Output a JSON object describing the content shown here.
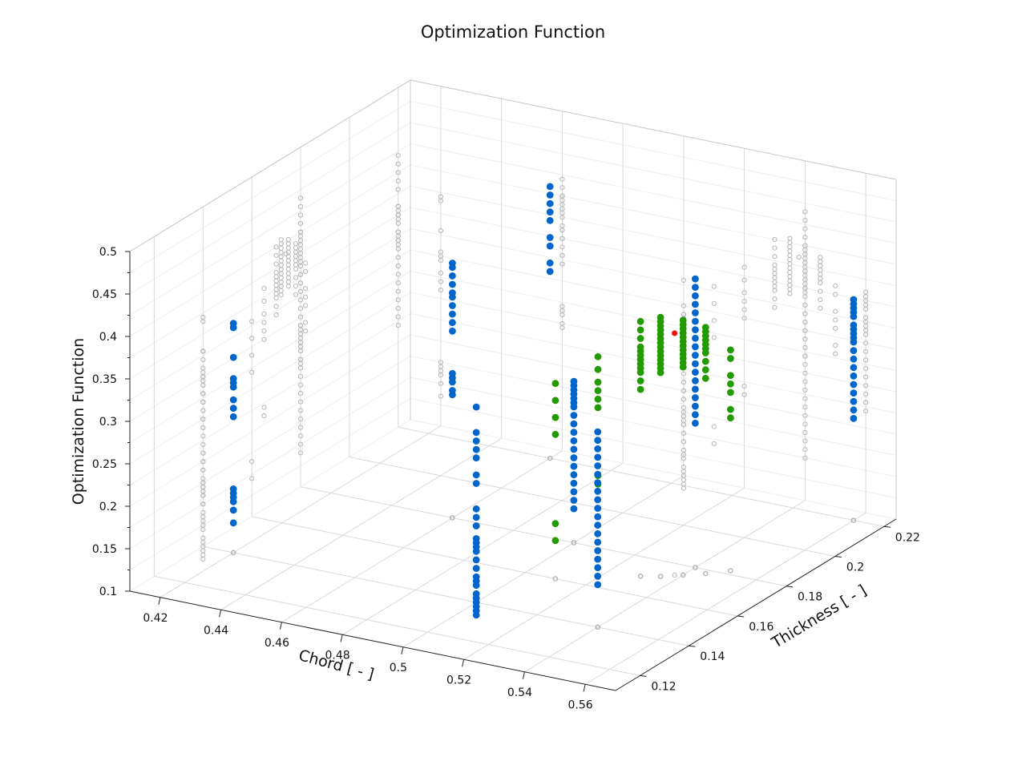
{
  "chart_data": {
    "type": "scatter",
    "title": "Optimization Function",
    "xlabel": "Chord [ - ]",
    "ylabel": "Thickness [ - ]",
    "zlabel": "Optimization Function",
    "xlim": [
      0.41,
      0.57
    ],
    "ylim": [
      0.11,
      0.225
    ],
    "zlim": [
      0.1,
      0.5
    ],
    "xticks": [
      "0.42",
      "0.44",
      "0.46",
      "0.48",
      "0.5",
      "0.52",
      "0.54",
      "0.56"
    ],
    "yticks": [
      "0.12",
      "0.14",
      "0.16",
      "0.18",
      "0.2",
      "0.22"
    ],
    "zticks": [
      "0.1",
      "0.15",
      "0.2",
      "0.25",
      "0.3",
      "0.35",
      "0.4",
      "0.45",
      "0.5"
    ],
    "colors": {
      "projection": "#b5b5b5",
      "explored": "#0066cc",
      "refined": "#229a00",
      "optimum": "#ee1111"
    },
    "grid": true,
    "series": [
      {
        "color": "#0066cc",
        "x": [
          0.42,
          0.42,
          0.42,
          0.42,
          0.42,
          0.42,
          0.42,
          0.42,
          0.42,
          0.42,
          0.42,
          0.42,
          0.42,
          0.42,
          0.42,
          0.46,
          0.46,
          0.46,
          0.46,
          0.46,
          0.46,
          0.46,
          0.46,
          0.46,
          0.46,
          0.46,
          0.46,
          0.46,
          0.46,
          0.46,
          0.46,
          0.46,
          0.46,
          0.46,
          0.46,
          0.46,
          0.46,
          0.46,
          0.46,
          0.5,
          0.5,
          0.5,
          0.5,
          0.5,
          0.5,
          0.5,
          0.5,
          0.5,
          0.5,
          0.5,
          0.5,
          0.5,
          0.5,
          0.5,
          0.5,
          0.5,
          0.5,
          0.5,
          0.5,
          0.5,
          0.5,
          0.5,
          0.5,
          0.5,
          0.5,
          0.5,
          0.5,
          0.5,
          0.5,
          0.5,
          0.5,
          0.5,
          0.5,
          0.5,
          0.5,
          0.5,
          0.5,
          0.5,
          0.5,
          0.5,
          0.5,
          0.5,
          0.5,
          0.54,
          0.54,
          0.54,
          0.54,
          0.54,
          0.54,
          0.54,
          0.54,
          0.54,
          0.54,
          0.54,
          0.54,
          0.54,
          0.54,
          0.54,
          0.54,
          0.54,
          0.54,
          0.54,
          0.54,
          0.54,
          0.54,
          0.54,
          0.54,
          0.54,
          0.54,
          0.54,
          0.54,
          0.54,
          0.54,
          0.54,
          0.54,
          0.54,
          0.54,
          0.54,
          0.54,
          0.54,
          0.56,
          0.56,
          0.56,
          0.56,
          0.56,
          0.56,
          0.56,
          0.56,
          0.56,
          0.56,
          0.56,
          0.56,
          0.56,
          0.56,
          0.56,
          0.56,
          0.56,
          0.56,
          0.56
        ],
        "y": [
          0.14,
          0.14,
          0.14,
          0.14,
          0.14,
          0.14,
          0.14,
          0.14,
          0.14,
          0.14,
          0.14,
          0.14,
          0.14,
          0.14,
          0.14,
          0.18,
          0.18,
          0.18,
          0.18,
          0.18,
          0.18,
          0.18,
          0.18,
          0.18,
          0.18,
          0.18,
          0.18,
          0.18,
          0.18,
          0.18,
          0.22,
          0.22,
          0.22,
          0.22,
          0.22,
          0.22,
          0.22,
          0.22,
          0.22,
          0.14,
          0.14,
          0.14,
          0.14,
          0.14,
          0.14,
          0.14,
          0.14,
          0.14,
          0.14,
          0.14,
          0.14,
          0.14,
          0.14,
          0.14,
          0.14,
          0.14,
          0.14,
          0.14,
          0.14,
          0.14,
          0.14,
          0.14,
          0.14,
          0.14,
          0.18,
          0.18,
          0.18,
          0.18,
          0.18,
          0.18,
          0.18,
          0.18,
          0.18,
          0.18,
          0.18,
          0.18,
          0.18,
          0.18,
          0.18,
          0.18,
          0.18,
          0.18,
          0.18,
          0.14,
          0.14,
          0.14,
          0.14,
          0.14,
          0.14,
          0.14,
          0.14,
          0.14,
          0.14,
          0.14,
          0.14,
          0.14,
          0.14,
          0.14,
          0.14,
          0.14,
          0.14,
          0.14,
          0.18,
          0.18,
          0.18,
          0.18,
          0.18,
          0.18,
          0.18,
          0.18,
          0.18,
          0.18,
          0.18,
          0.18,
          0.18,
          0.18,
          0.18,
          0.18,
          0.18,
          0.18,
          0.22,
          0.22,
          0.22,
          0.22,
          0.22,
          0.22,
          0.22,
          0.22,
          0.22,
          0.22,
          0.22,
          0.22,
          0.22,
          0.22,
          0.22,
          0.22,
          0.22,
          0.22,
          0.22
        ],
        "z": [
          0.37,
          0.365,
          0.33,
          0.305,
          0.3,
          0.295,
          0.28,
          0.27,
          0.26,
          0.175,
          0.17,
          0.165,
          0.16,
          0.15,
          0.135,
          0.4,
          0.395,
          0.385,
          0.375,
          0.365,
          0.36,
          0.35,
          0.34,
          0.33,
          0.32,
          0.27,
          0.265,
          0.26,
          0.25,
          0.245,
          0.42,
          0.41,
          0.4,
          0.39,
          0.38,
          0.36,
          0.35,
          0.33,
          0.32,
          0.33,
          0.3,
          0.29,
          0.28,
          0.27,
          0.25,
          0.24,
          0.21,
          0.2,
          0.19,
          0.175,
          0.17,
          0.165,
          0.16,
          0.15,
          0.14,
          0.13,
          0.125,
          0.12,
          0.11,
          0.105,
          0.1,
          0.095,
          0.09,
          0.085,
          0.29,
          0.285,
          0.28,
          0.275,
          0.27,
          0.265,
          0.26,
          0.25,
          0.24,
          0.23,
          0.22,
          0.21,
          0.2,
          0.19,
          0.18,
          0.17,
          0.16,
          0.15,
          0.14,
          0.33,
          0.32,
          0.31,
          0.3,
          0.29,
          0.28,
          0.27,
          0.26,
          0.25,
          0.24,
          0.23,
          0.22,
          0.21,
          0.2,
          0.19,
          0.18,
          0.17,
          0.16,
          0.15,
          0.44,
          0.43,
          0.42,
          0.41,
          0.4,
          0.39,
          0.38,
          0.37,
          0.36,
          0.35,
          0.34,
          0.33,
          0.32,
          0.31,
          0.3,
          0.29,
          0.28,
          0.27,
          0.36,
          0.355,
          0.35,
          0.345,
          0.34,
          0.33,
          0.325,
          0.32,
          0.315,
          0.31,
          0.3,
          0.29,
          0.28,
          0.27,
          0.26,
          0.25,
          0.24,
          0.23,
          0.22
        ]
      },
      {
        "color": "#229a00",
        "x": [
          0.51,
          0.51,
          0.51,
          0.51,
          0.51,
          0.51,
          0.52,
          0.52,
          0.52,
          0.52,
          0.52,
          0.52,
          0.52,
          0.52,
          0.53,
          0.53,
          0.53,
          0.53,
          0.53,
          0.53,
          0.53,
          0.53,
          0.53,
          0.53,
          0.53,
          0.53,
          0.535,
          0.535,
          0.535,
          0.535,
          0.535,
          0.535,
          0.535,
          0.535,
          0.535,
          0.535,
          0.535,
          0.535,
          0.535,
          0.535,
          0.54,
          0.54,
          0.54,
          0.54,
          0.54,
          0.54,
          0.54,
          0.54,
          0.54,
          0.54,
          0.54,
          0.54,
          0.545,
          0.545,
          0.545,
          0.545,
          0.545,
          0.545,
          0.545,
          0.545,
          0.545,
          0.545,
          0.55,
          0.55,
          0.55,
          0.55,
          0.55,
          0.55,
          0.55
        ],
        "y": [
          0.16,
          0.16,
          0.16,
          0.16,
          0.16,
          0.16,
          0.165,
          0.165,
          0.165,
          0.165,
          0.165,
          0.165,
          0.165,
          0.165,
          0.17,
          0.17,
          0.17,
          0.17,
          0.17,
          0.17,
          0.17,
          0.17,
          0.17,
          0.17,
          0.17,
          0.17,
          0.172,
          0.172,
          0.172,
          0.172,
          0.172,
          0.172,
          0.172,
          0.172,
          0.172,
          0.172,
          0.172,
          0.172,
          0.172,
          0.172,
          0.175,
          0.175,
          0.175,
          0.175,
          0.175,
          0.175,
          0.175,
          0.175,
          0.175,
          0.175,
          0.175,
          0.175,
          0.178,
          0.178,
          0.178,
          0.178,
          0.178,
          0.178,
          0.178,
          0.178,
          0.178,
          0.178,
          0.182,
          0.182,
          0.182,
          0.182,
          0.182,
          0.182,
          0.182
        ],
        "z": [
          0.33,
          0.31,
          0.29,
          0.27,
          0.165,
          0.145,
          0.36,
          0.345,
          0.33,
          0.32,
          0.31,
          0.3,
          0.22,
          0.21,
          0.4,
          0.39,
          0.38,
          0.37,
          0.365,
          0.36,
          0.355,
          0.35,
          0.345,
          0.34,
          0.33,
          0.32,
          0.405,
          0.4,
          0.395,
          0.39,
          0.385,
          0.38,
          0.375,
          0.37,
          0.365,
          0.36,
          0.355,
          0.35,
          0.345,
          0.34,
          0.4,
          0.395,
          0.39,
          0.385,
          0.38,
          0.375,
          0.37,
          0.365,
          0.36,
          0.355,
          0.35,
          0.345,
          0.39,
          0.385,
          0.38,
          0.375,
          0.37,
          0.365,
          0.36,
          0.35,
          0.34,
          0.33,
          0.36,
          0.35,
          0.33,
          0.32,
          0.31,
          0.29,
          0.28
        ]
      },
      {
        "color": "#ee1111",
        "x": [
          0.538
        ],
        "y": [
          0.174
        ],
        "z": [
          0.385
        ]
      }
    ]
  }
}
